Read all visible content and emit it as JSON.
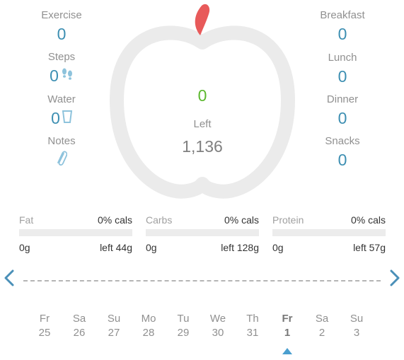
{
  "left_stats": [
    {
      "label": "Exercise",
      "value": "0",
      "icon": ""
    },
    {
      "label": "Steps",
      "value": "0",
      "icon": "footprints-icon"
    },
    {
      "label": "Water",
      "value": "0",
      "icon": "water-glass-icon"
    },
    {
      "label": "Notes",
      "value": "",
      "icon": "paperclip-icon"
    }
  ],
  "right_stats": [
    {
      "label": "Breakfast",
      "value": "0"
    },
    {
      "label": "Lunch",
      "value": "0"
    },
    {
      "label": "Dinner",
      "value": "0"
    },
    {
      "label": "Snacks",
      "value": "0"
    }
  ],
  "center": {
    "consumed": "0",
    "left_label": "Left",
    "left_value": "1,136"
  },
  "macros": [
    {
      "name": "Fat",
      "percent": "0% cals",
      "amount": "0g",
      "left": "left 44g",
      "fill": 0
    },
    {
      "name": "Carbs",
      "percent": "0% cals",
      "amount": "0g",
      "left": "left 128g",
      "fill": 0
    },
    {
      "name": "Protein",
      "percent": "0% cals",
      "amount": "0g",
      "left": "left 57g",
      "fill": 0
    }
  ],
  "days": [
    {
      "name": "Fr",
      "num": "25"
    },
    {
      "name": "Sa",
      "num": "26"
    },
    {
      "name": "Su",
      "num": "27"
    },
    {
      "name": "Mo",
      "num": "28"
    },
    {
      "name": "Tu",
      "num": "29"
    },
    {
      "name": "We",
      "num": "30"
    },
    {
      "name": "Th",
      "num": "31"
    },
    {
      "name": "Fr",
      "num": "1",
      "selected": true
    },
    {
      "name": "Sa",
      "num": "2"
    },
    {
      "name": "Su",
      "num": "3"
    }
  ],
  "colors": {
    "accent": "#3d8fb2",
    "consumed_green": "#5cb82e",
    "apple_red": "#e85a5a",
    "apple_outline": "#ebebeb",
    "nav_arrow": "#4a90b8",
    "selected_marker": "#4a9fcf"
  }
}
